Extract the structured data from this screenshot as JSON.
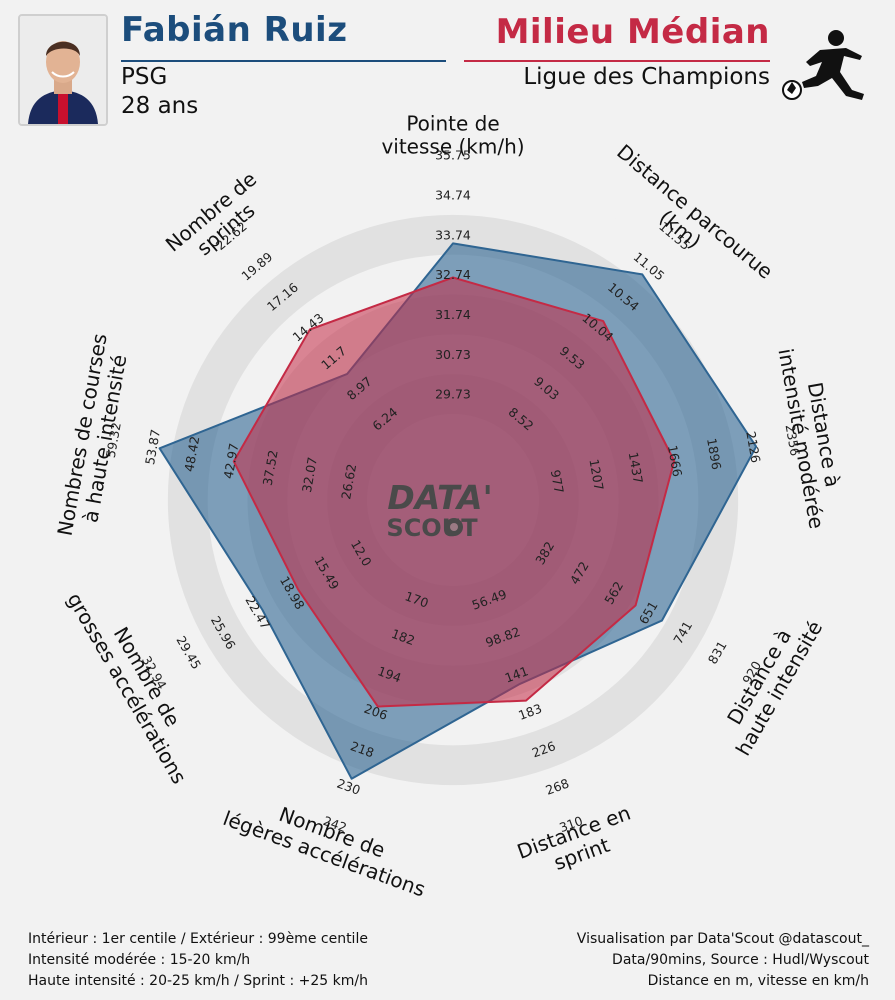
{
  "header": {
    "player_name": "Fabián Ruiz",
    "club": "PSG",
    "age": "28 ans",
    "position": "Milieu Médian",
    "competition": "Ligue des Champions",
    "colors": {
      "player": "#1c4d7c",
      "position": "#c42a45"
    },
    "icons": {
      "photo": "player-photo",
      "position": "footballer-kicking-icon"
    }
  },
  "logo": {
    "line1": "DATA'",
    "line2": "SCOUT",
    "icon": "soccer-ball-icon"
  },
  "chart_data": {
    "type": "radar",
    "axes": [
      {
        "label_lines": [
          "Pointe de",
          "vitesse (km/h)"
        ],
        "ticks": [
          "29.73",
          "30.73",
          "31.74",
          "32.74",
          "33.74",
          "34.74",
          "35.75"
        ],
        "min": 28.73,
        "max": 35.75
      },
      {
        "label_lines": [
          "Distance parcourue",
          "(km)"
        ],
        "ticks": [
          "8.52",
          "9.03",
          "9.53",
          "10.04",
          "10.54",
          "11.05",
          "11.55"
        ],
        "min": 8.02,
        "max": 11.55
      },
      {
        "label_lines": [
          "Distance à",
          "intensité modérée"
        ],
        "ticks": [
          "977",
          "1207",
          "1437",
          "1666",
          "1896",
          "2126",
          "2356"
        ],
        "min": 747,
        "max": 2356
      },
      {
        "label_lines": [
          "Distance à",
          "haute intensité"
        ],
        "ticks": [
          "382",
          "472",
          "562",
          "651",
          "741",
          "831",
          "920"
        ],
        "min": 292,
        "max": 920
      },
      {
        "label_lines": [
          "Distance en",
          "sprint"
        ],
        "ticks": [
          "56.49",
          "98.82",
          "141",
          "183",
          "226",
          "268",
          "310"
        ],
        "min": 14.16,
        "max": 310
      },
      {
        "label_lines": [
          "Nombre de",
          "légères accélérations"
        ],
        "ticks": [
          "170",
          "182",
          "194",
          "206",
          "218",
          "230",
          "242"
        ],
        "min": 158,
        "max": 242
      },
      {
        "label_lines": [
          "Nombre de",
          "grosses accélérations"
        ],
        "ticks": [
          "12.0",
          "15.49",
          "18.98",
          "22.47",
          "25.96",
          "29.45",
          "32.94"
        ],
        "min": 8.51,
        "max": 32.94
      },
      {
        "label_lines": [
          "Nombres de courses",
          "à haute intensité"
        ],
        "ticks": [
          "26.62",
          "32.07",
          "37.52",
          "42.97",
          "48.42",
          "53.87",
          "59.32"
        ],
        "min": 21.17,
        "max": 59.32
      },
      {
        "label_lines": [
          "Nombre de",
          "sprints"
        ],
        "ticks": [
          "6.24",
          "8.97",
          "11.7",
          "14.43",
          "17.16",
          "19.89",
          "22.62"
        ],
        "min": 3.51,
        "max": 22.62
      }
    ],
    "series": [
      {
        "color": "#2f6592",
        "values": [
          33.74,
          11.1,
          2240,
          700,
          150,
          232,
          22.2,
          55.0,
          9.8
        ]
      },
      {
        "color": "#c42a45",
        "values": [
          32.74,
          10.2,
          1680,
          620,
          172,
          205,
          18.0,
          42.97,
          14.43
        ]
      }
    ]
  },
  "footer": {
    "left": [
      "Intérieur : 1er centile / Extérieur : 99ème centile",
      "Intensité modérée : 15-20 km/h",
      "Haute intensité : 20-25 km/h / Sprint : +25 km/h"
    ],
    "right": [
      "Visualisation par Data'Scout @datascout_",
      "Data/90mins, Source : Hudl/Wyscout",
      "Distance en m, vitesse en km/h"
    ]
  }
}
